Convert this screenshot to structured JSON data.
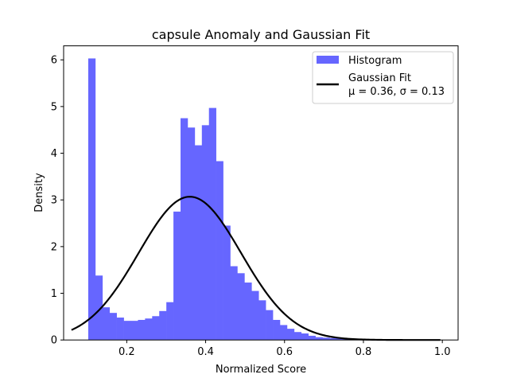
{
  "chart_data": {
    "type": "bar",
    "title": "capsule Anomaly and Gaussian Fit",
    "xlabel": "Normalized Score",
    "ylabel": "Density",
    "xlim": [
      0.04,
      1.04
    ],
    "ylim": [
      0,
      6.3
    ],
    "xticks": [
      "0.2",
      "0.4",
      "0.6",
      "0.8",
      "1.0"
    ],
    "xtick_values": [
      0.2,
      0.4,
      0.6,
      0.8,
      1.0
    ],
    "yticks": [
      "0",
      "1",
      "2",
      "3",
      "4",
      "5",
      "6"
    ],
    "ytick_values": [
      0,
      1,
      2,
      3,
      4,
      5,
      6
    ],
    "grid": false,
    "legend_position": "top-right",
    "histogram": {
      "name": "Histogram",
      "color": "#6666ff",
      "bin_edges": [
        0.1024,
        0.1204,
        0.1384,
        0.1564,
        0.1744,
        0.1924,
        0.2104,
        0.2284,
        0.2464,
        0.2644,
        0.2824,
        0.3004,
        0.3184,
        0.3364,
        0.3544,
        0.3724,
        0.3904,
        0.4084,
        0.4264,
        0.4444,
        0.4624,
        0.4804,
        0.4984,
        0.5164,
        0.5344,
        0.5524,
        0.5704,
        0.5884,
        0.6064,
        0.6244,
        0.6424,
        0.6604,
        0.6784,
        0.6964,
        0.7144,
        0.7324,
        0.7504,
        0.7684,
        0.7864,
        0.8044,
        0.8224,
        0.8404,
        0.8584
      ],
      "values": [
        6.03,
        1.38,
        0.7,
        0.58,
        0.48,
        0.41,
        0.41,
        0.43,
        0.46,
        0.51,
        0.62,
        0.81,
        2.75,
        4.75,
        4.55,
        4.17,
        4.6,
        4.97,
        3.83,
        2.45,
        1.58,
        1.43,
        1.23,
        1.05,
        0.85,
        0.64,
        0.43,
        0.32,
        0.24,
        0.17,
        0.14,
        0.09,
        0.06,
        0.05,
        0.04,
        0.03,
        0.02,
        0.02,
        0.01,
        0.01,
        0.01,
        0.01
      ]
    },
    "series": [
      {
        "name": "Gaussian Fit",
        "color": "#000000",
        "type": "line",
        "mu": 0.36,
        "sigma": 0.13,
        "x_range": [
          0.06,
          0.995
        ]
      }
    ],
    "legend": {
      "hist_label": "Histogram",
      "fit_label": "Gaussian Fit",
      "fit_params_label": "μ = 0.36,  σ = 0.13"
    }
  }
}
